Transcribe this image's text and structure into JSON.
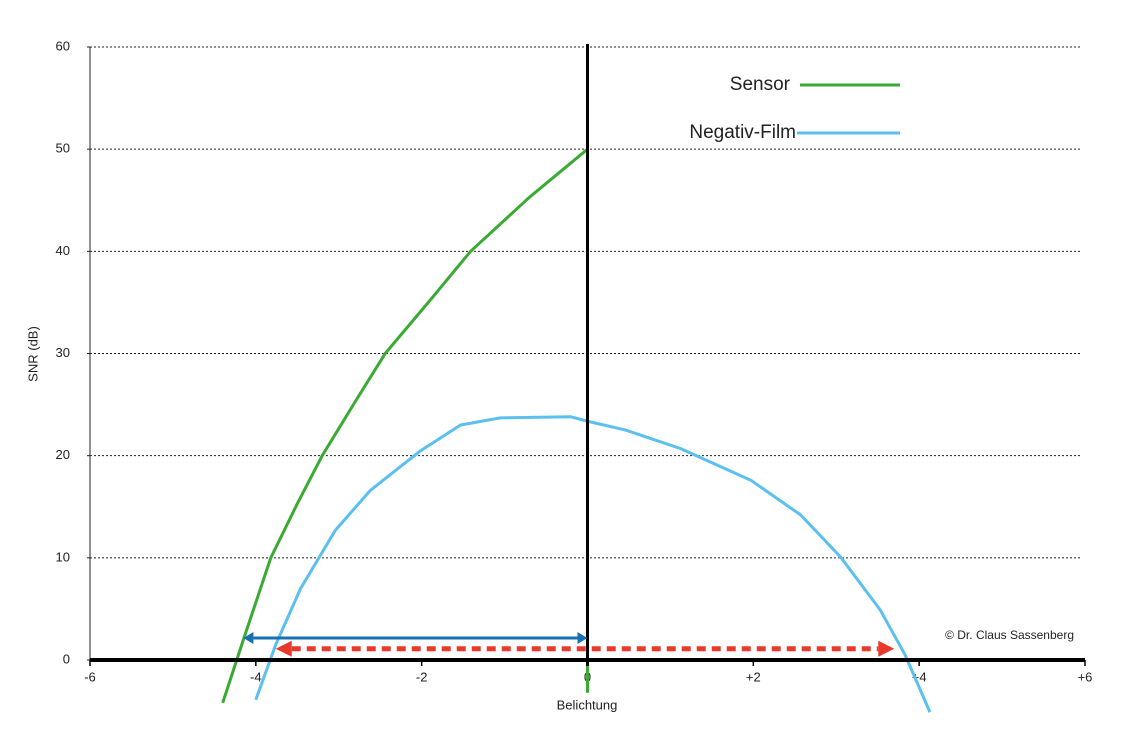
{
  "chart_data": {
    "type": "line",
    "xlabel": "Belichtung",
    "ylabel": "SNR (dB)",
    "xlim": [
      -6,
      6
    ],
    "xticks": [
      -6,
      -4,
      -2,
      0,
      {
        "value": 2,
        "label": "+2"
      },
      {
        "value": 4,
        "label": "+4"
      },
      {
        "value": 6,
        "label": "+6"
      }
    ],
    "ylim": [
      0,
      60
    ],
    "yticks": [
      0,
      10,
      20,
      30,
      40,
      50,
      60
    ],
    "grid": true,
    "legend": "upper right",
    "annotation": "© Dr. Claus Sassenberg",
    "series": [
      {
        "name": "Sensor",
        "color": "#3aaa35",
        "x": [
          -4.4,
          -4.15,
          -3.82,
          -3.5,
          -3.2,
          -2.8,
          -2.44,
          -1.9,
          -1.41,
          -0.7,
          0,
          0
        ],
        "values": [
          -4.2,
          2,
          10,
          15.3,
          20,
          25.3,
          30,
          35.2,
          40,
          45.3,
          50,
          -3.2
        ]
      },
      {
        "name": "Negativ-Film",
        "color": "#5bc0f0",
        "x": [
          -4.0,
          -3.76,
          -3.46,
          -3.04,
          -2.62,
          -2.01,
          -1.53,
          -1.05,
          -0.2,
          0.04,
          0.46,
          1.12,
          1.97,
          2.57,
          3.05,
          3.53,
          3.83,
          4.13
        ],
        "values": [
          -3.9,
          1.5,
          7,
          12.7,
          16.6,
          20.5,
          23,
          23.7,
          23.8,
          23.3,
          22.5,
          20.7,
          17.6,
          14.2,
          10.1,
          4.9,
          0.5,
          -5.1
        ]
      }
    ],
    "arrows": [
      {
        "x1": -4.15,
        "x2": 0,
        "y": 2.15,
        "color": "#1a6fb0",
        "dashed": false
      },
      {
        "x1": -3.76,
        "x2": 3.7,
        "y": 1.1,
        "color": "#e83a2a",
        "dashed": true
      }
    ]
  }
}
